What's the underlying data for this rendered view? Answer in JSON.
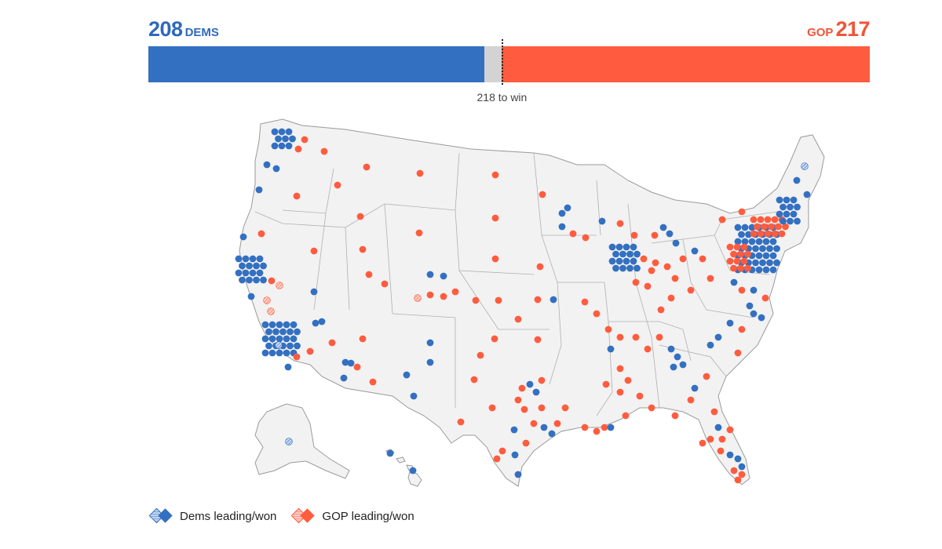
{
  "tally": {
    "dem_count": "208",
    "dem_label": "DEMS",
    "gop_label": "GOP",
    "gop_count": "217"
  },
  "bar": {
    "total_seats": 435,
    "dem_seats": 208,
    "gop_seats": 217,
    "win_threshold": 218,
    "win_label": "218 to win"
  },
  "colors": {
    "dem": "#3370c1",
    "gop": "#ff5c3f",
    "undecided": "#d3d3d3",
    "land": "#f2f2f2",
    "borders": "#9a9a9a"
  },
  "legend": {
    "dem_label": "Dems leading/won",
    "gop_label": "GOP leading/won"
  },
  "map": {
    "type": "dot-map of U.S. House district results",
    "parties": [
      "dem",
      "gop"
    ],
    "status_styles": [
      "leading (hatched)",
      "won (solid)"
    ]
  }
}
